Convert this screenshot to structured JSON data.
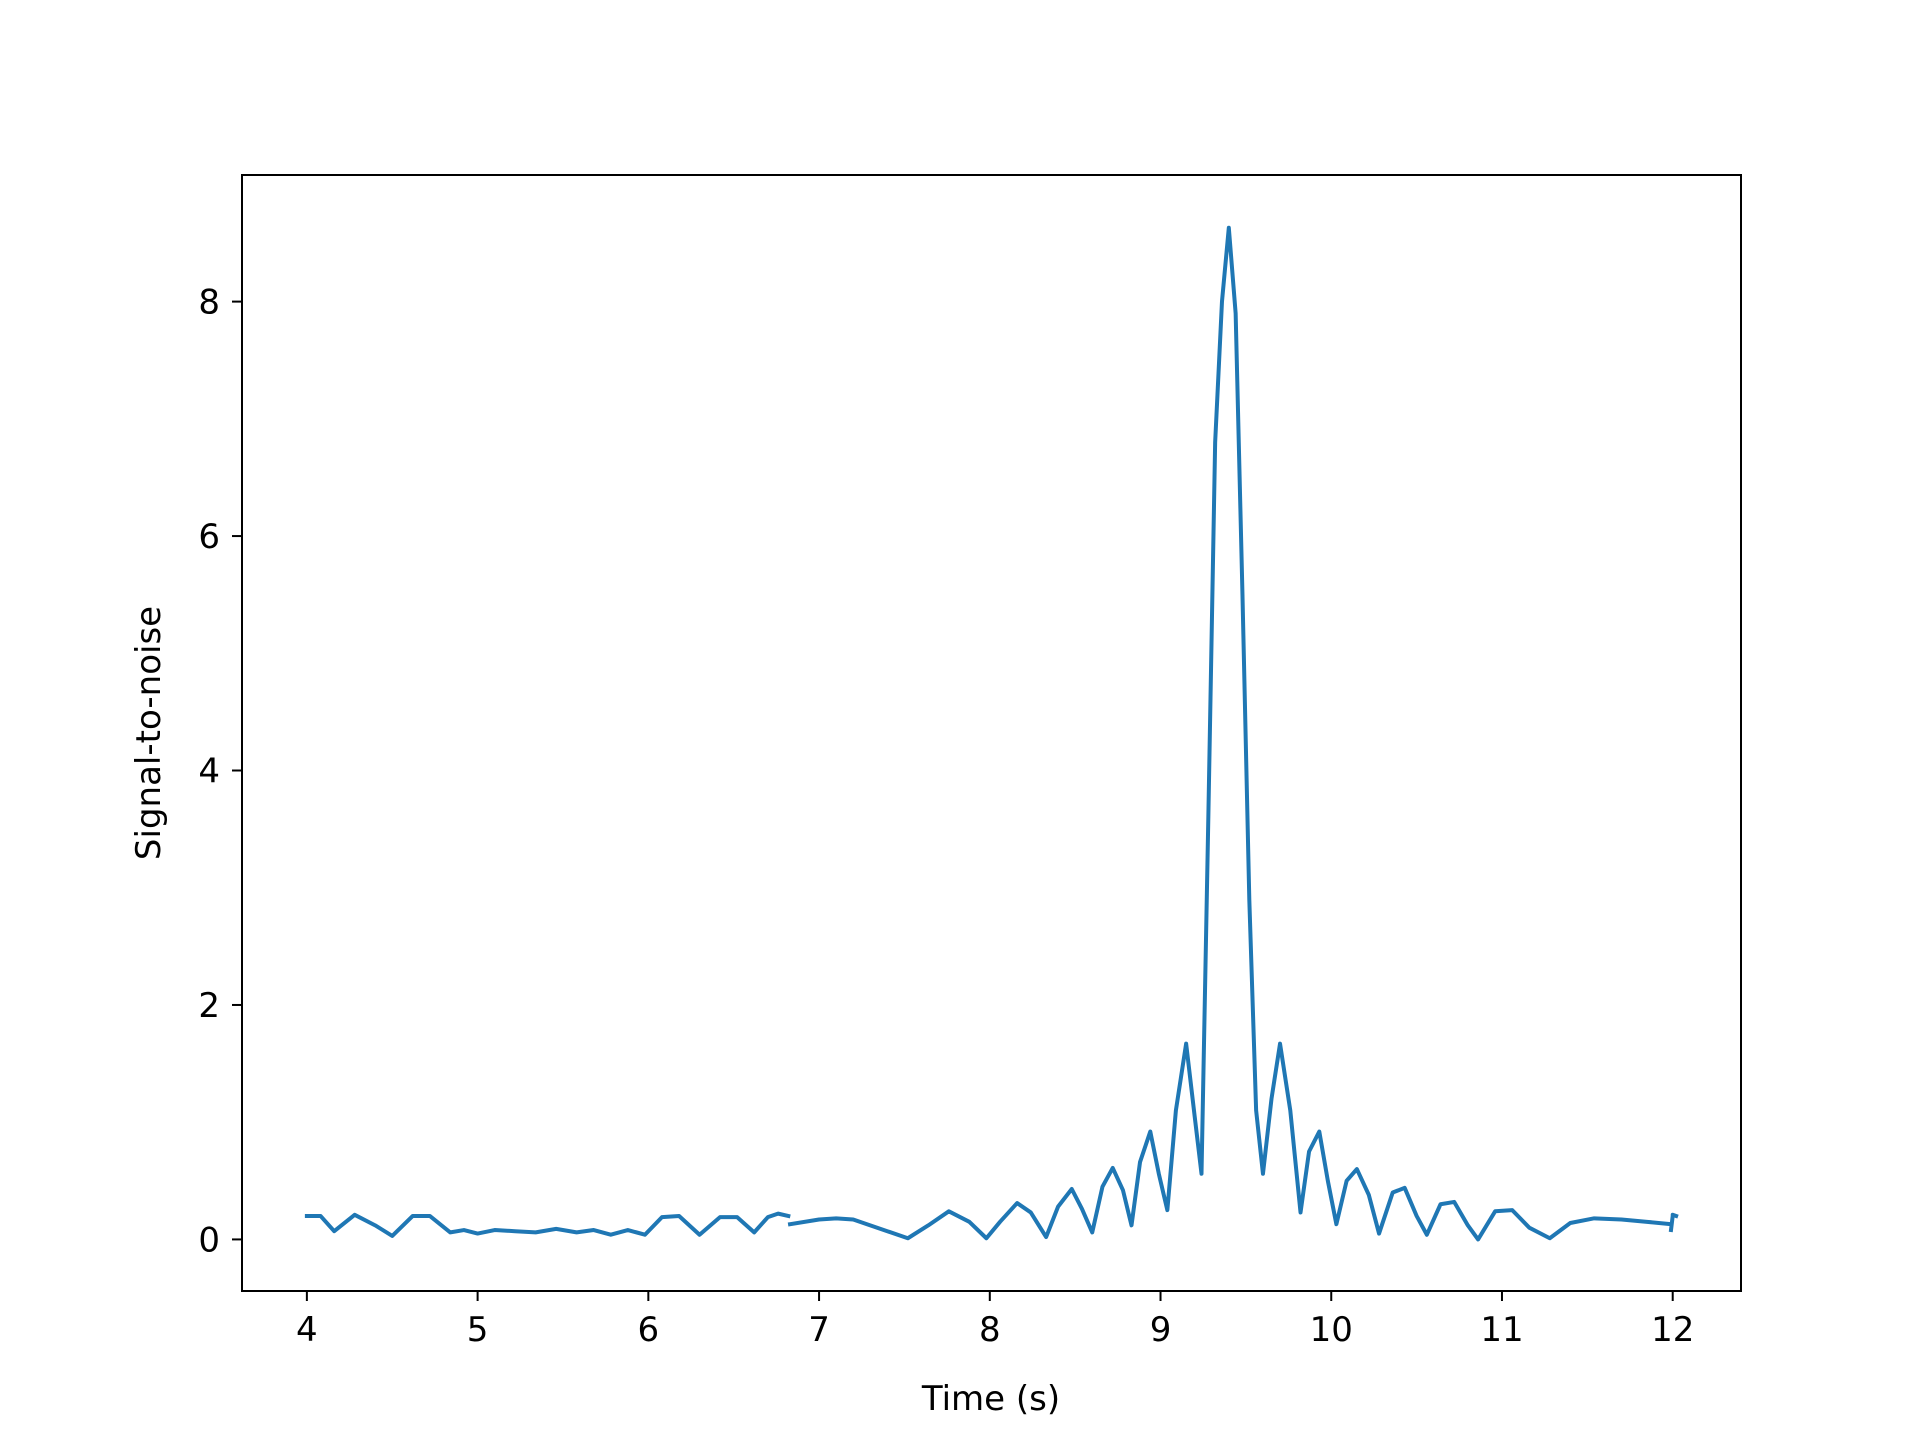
{
  "chart_data": {
    "type": "line",
    "title": "",
    "xlabel": "Time (s)",
    "ylabel": "Signal-to-noise",
    "xlim": [
      3.62,
      12.4
    ],
    "ylim": [
      -0.44,
      9.08
    ],
    "xticks": [
      4,
      5,
      6,
      7,
      8,
      9,
      10,
      11,
      12
    ],
    "yticks": [
      0,
      2,
      4,
      6,
      8
    ],
    "grid": false,
    "legend": "none",
    "line_color": "#1f77b4",
    "series": [
      {
        "segments": [
          {
            "x": [
              4.0,
              4.08,
              4.16,
              4.28,
              4.4,
              4.5,
              4.62,
              4.72,
              4.84,
              4.92,
              5.0,
              5.1,
              5.22,
              5.34,
              5.46,
              5.58,
              5.68,
              5.78,
              5.88,
              5.98,
              6.08,
              6.18,
              6.3,
              6.42,
              6.52,
              6.62,
              6.7,
              6.76,
              6.82
            ],
            "y": [
              0.2,
              0.2,
              0.07,
              0.21,
              0.12,
              0.03,
              0.2,
              0.2,
              0.06,
              0.08,
              0.05,
              0.08,
              0.07,
              0.06,
              0.09,
              0.06,
              0.08,
              0.04,
              0.08,
              0.04,
              0.19,
              0.2,
              0.04,
              0.19,
              0.19,
              0.06,
              0.19,
              0.22,
              0.2
            ]
          },
          {
            "x": [
              6.83,
              7.0,
              7.1,
              7.2,
              7.3,
              7.4,
              7.52,
              7.64,
              7.76,
              7.88,
              7.98,
              8.06,
              8.16,
              8.24,
              8.33,
              8.4,
              8.48,
              8.54,
              8.6,
              8.66,
              8.72,
              8.78,
              8.83,
              8.88,
              8.94,
              8.99,
              9.04,
              9.09,
              9.15,
              9.2,
              9.24,
              9.28,
              9.32,
              9.36,
              9.4,
              9.44,
              9.48,
              9.52,
              9.56,
              9.6,
              9.65,
              9.7,
              9.76,
              9.82,
              9.87,
              9.93,
              9.98,
              10.03,
              10.09,
              10.15,
              10.22,
              10.28,
              10.36,
              10.43,
              10.5,
              10.56,
              10.64,
              10.72,
              10.8,
              10.86,
              10.96,
              11.06,
              11.16,
              11.28,
              11.4,
              11.54,
              11.7,
              11.85,
              11.99
            ],
            "y": [
              0.13,
              0.17,
              0.18,
              0.17,
              0.12,
              0.07,
              0.01,
              0.12,
              0.24,
              0.15,
              0.01,
              0.15,
              0.31,
              0.23,
              0.02,
              0.28,
              0.43,
              0.26,
              0.06,
              0.45,
              0.61,
              0.42,
              0.12,
              0.66,
              0.92,
              0.56,
              0.25,
              1.1,
              1.67,
              1.05,
              0.56,
              3.6,
              6.8,
              8.0,
              8.63,
              7.9,
              5.5,
              2.9,
              1.1,
              0.56,
              1.2,
              1.67,
              1.1,
              0.23,
              0.75,
              0.92,
              0.5,
              0.13,
              0.5,
              0.6,
              0.38,
              0.05,
              0.4,
              0.44,
              0.2,
              0.04,
              0.3,
              0.32,
              0.12,
              0.0,
              0.24,
              0.25,
              0.1,
              0.01,
              0.14,
              0.18,
              0.17,
              0.15,
              0.13
            ]
          },
          {
            "x": [
              11.99,
              12.0,
              12.0,
              12.02
            ],
            "y": [
              0.08,
              0.2,
              0.21,
              0.2
            ]
          }
        ]
      }
    ]
  }
}
